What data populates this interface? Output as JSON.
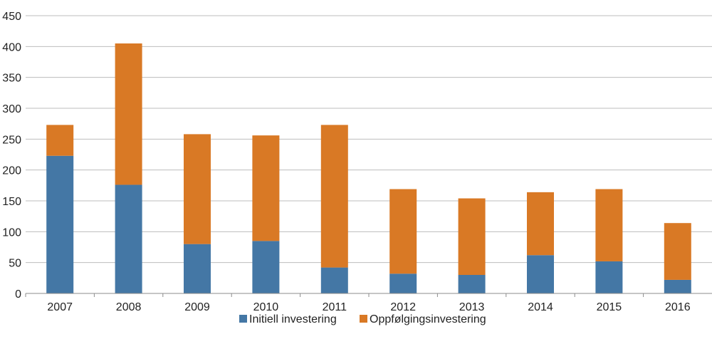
{
  "chart_data": {
    "type": "bar",
    "stacked": true,
    "categories": [
      "2007",
      "2008",
      "2009",
      "2010",
      "2011",
      "2012",
      "2013",
      "2014",
      "2015",
      "2016"
    ],
    "series": [
      {
        "name": "Initiell investering",
        "color": "#4477a5",
        "values": [
          223,
          176,
          80,
          85,
          42,
          32,
          30,
          62,
          52,
          22
        ]
      },
      {
        "name": "Oppfølgingsinvestering",
        "color": "#d97925",
        "values": [
          50,
          229,
          178,
          171,
          231,
          137,
          124,
          102,
          117,
          92
        ]
      }
    ],
    "ylim": [
      0,
      450
    ],
    "yticks": [
      "0",
      "50",
      "100",
      "150",
      "200",
      "250",
      "300",
      "350",
      "400",
      "450"
    ],
    "grid": true,
    "legend_position": "bottom-center"
  }
}
